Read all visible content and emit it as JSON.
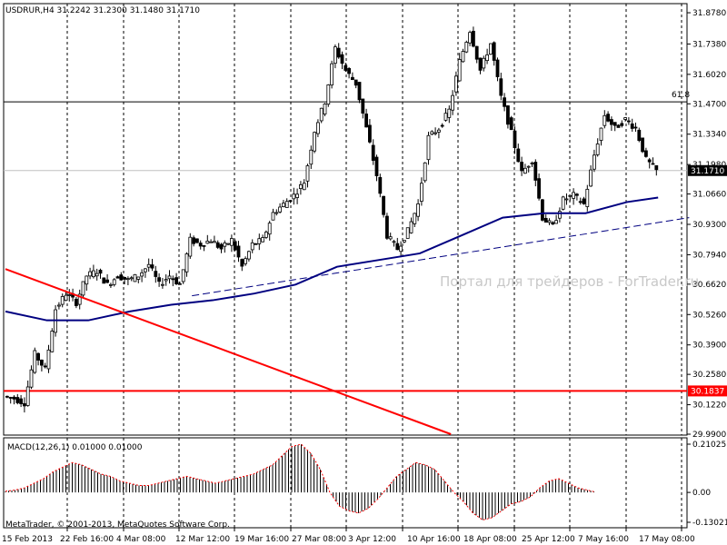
{
  "window_title": "USDRUR,H4  31.2242 31.2300 31.1480 31.1710",
  "copyright": "MetaTrader, © 2001-2013, MetaQuotes Software Corp.",
  "watermark": "Портал для трейдеров - ForTrader.ru",
  "fib_label": "61.8",
  "macd_title": "MACD(12,26,1) 0.01000 0.01000",
  "chart_data": [
    {
      "type": "candlestick",
      "symbol": "USDRUR",
      "timeframe": "H4",
      "title": "USDRUR,H4  31.2242 31.2300 31.1480 31.1710",
      "last_price": 31.171,
      "last_price_label": "31.1710",
      "ylim": [
        29.99,
        31.87
      ],
      "y_ticks": [
        31.878,
        31.738,
        31.602,
        31.47,
        31.334,
        31.198,
        31.066,
        30.93,
        30.794,
        30.662,
        30.526,
        30.39,
        30.258,
        30.122,
        29.99
      ],
      "y_tick_labels": [
        "31.8780",
        "31.7380",
        "31.6020",
        "31.4700",
        "31.3340",
        "31.1980",
        "31.0660",
        "30.9300",
        "30.7940",
        "30.6620",
        "30.5260",
        "30.3900",
        "30.2580",
        "30.1220",
        "29.9900"
      ],
      "x_tick_labels": [
        "15 Feb 2013",
        "22 Feb 16:00",
        "4 Mar 08:00",
        "12 Mar 12:00",
        "19 Mar 16:00",
        "27 Mar 08:00",
        "3 Apr 12:00",
        "10 Apr 16:00",
        "18 Apr 08:00",
        "25 Apr 12:00",
        "7 May 16:00",
        "17 May 08:00"
      ],
      "horizontal_lines": [
        {
          "label": "61.8",
          "value": 31.479,
          "color": "#000000"
        },
        {
          "label": "30.1837",
          "value": 30.1837,
          "color": "#ff0000"
        }
      ],
      "moving_average_color": "#000080",
      "grid": "vertical dashed",
      "close_path": [
        [
          0,
          30.16
        ],
        [
          1,
          30.15
        ],
        [
          2,
          30.13
        ],
        [
          3,
          30.35
        ],
        [
          4,
          30.28
        ],
        [
          5,
          30.55
        ],
        [
          6,
          30.62
        ],
        [
          7,
          30.58
        ],
        [
          8,
          30.7
        ],
        [
          9,
          30.72
        ],
        [
          10,
          30.66
        ],
        [
          11,
          30.7
        ],
        [
          12,
          30.68
        ],
        [
          13,
          30.7
        ],
        [
          14,
          30.75
        ],
        [
          15,
          30.66
        ],
        [
          16,
          30.7
        ],
        [
          17,
          30.66
        ],
        [
          18,
          30.86
        ],
        [
          19,
          30.84
        ],
        [
          20,
          30.86
        ],
        [
          21,
          30.82
        ],
        [
          22,
          30.86
        ],
        [
          23,
          30.74
        ],
        [
          24,
          30.84
        ],
        [
          25,
          30.86
        ],
        [
          26,
          30.98
        ],
        [
          27,
          31.02
        ],
        [
          28,
          31.06
        ],
        [
          29,
          31.12
        ],
        [
          30,
          31.35
        ],
        [
          31,
          31.48
        ],
        [
          32,
          31.72
        ],
        [
          33,
          31.62
        ],
        [
          34,
          31.56
        ],
        [
          35,
          31.36
        ],
        [
          36,
          31.15
        ],
        [
          37,
          30.88
        ],
        [
          38,
          30.82
        ],
        [
          39,
          30.9
        ],
        [
          40,
          31.02
        ],
        [
          41,
          31.32
        ],
        [
          42,
          31.36
        ],
        [
          43,
          31.44
        ],
        [
          44,
          31.66
        ],
        [
          45,
          31.8
        ],
        [
          46,
          31.62
        ],
        [
          47,
          31.74
        ],
        [
          48,
          31.5
        ],
        [
          49,
          31.34
        ],
        [
          50,
          31.16
        ],
        [
          51,
          31.22
        ],
        [
          52,
          30.96
        ],
        [
          53,
          30.92
        ],
        [
          54,
          31.04
        ],
        [
          55,
          31.06
        ],
        [
          56,
          31.02
        ],
        [
          57,
          31.24
        ],
        [
          58,
          31.42
        ],
        [
          59,
          31.36
        ],
        [
          60,
          31.4
        ],
        [
          61,
          31.36
        ],
        [
          62,
          31.22
        ],
        [
          63,
          31.17
        ]
      ],
      "moving_average": [
        [
          0,
          30.54
        ],
        [
          4,
          30.5
        ],
        [
          8,
          30.5
        ],
        [
          12,
          30.54
        ],
        [
          16,
          30.57
        ],
        [
          20,
          30.59
        ],
        [
          24,
          30.62
        ],
        [
          28,
          30.66
        ],
        [
          32,
          30.74
        ],
        [
          36,
          30.77
        ],
        [
          40,
          30.8
        ],
        [
          44,
          30.88
        ],
        [
          48,
          30.96
        ],
        [
          52,
          30.98
        ],
        [
          56,
          30.98
        ],
        [
          60,
          31.03
        ],
        [
          63,
          31.05
        ]
      ],
      "trendlines": [
        {
          "name": "support-dashed",
          "from": [
            18,
            30.61
          ],
          "to": [
            66,
            30.96
          ],
          "style": "dashed",
          "color": "#000080"
        },
        {
          "name": "resistance-red",
          "from": [
            0,
            30.73
          ],
          "to": [
            43,
            29.99
          ],
          "style": "solid",
          "color": "#ff0000"
        }
      ]
    },
    {
      "type": "bar",
      "title": "MACD(12,26,1) 0.01000 0.01000",
      "ylim": [
        -0.13021,
        0.21025
      ],
      "y_ticks": [
        0.21025,
        0.0,
        -0.13021
      ],
      "y_tick_labels": [
        "0.21025",
        "0.00",
        "-0.13021"
      ],
      "bar_color": "#000000",
      "signal_color": "#ff0000",
      "values": [
        0.005,
        0.01,
        0.02,
        0.04,
        0.06,
        0.09,
        0.11,
        0.13,
        0.12,
        0.1,
        0.08,
        0.07,
        0.05,
        0.04,
        0.03,
        0.03,
        0.04,
        0.05,
        0.06,
        0.07,
        0.06,
        0.05,
        0.04,
        0.05,
        0.06,
        0.07,
        0.08,
        0.1,
        0.12,
        0.16,
        0.2,
        0.21,
        0.17,
        0.1,
        0.0,
        -0.06,
        -0.08,
        -0.09,
        -0.07,
        -0.03,
        0.02,
        0.07,
        0.1,
        0.13,
        0.12,
        0.1,
        0.05,
        0.0,
        -0.04,
        -0.09,
        -0.12,
        -0.11,
        -0.08,
        -0.05,
        -0.04,
        -0.02,
        0.02,
        0.05,
        0.06,
        0.04,
        0.02,
        0.01,
        0.0
      ]
    }
  ]
}
